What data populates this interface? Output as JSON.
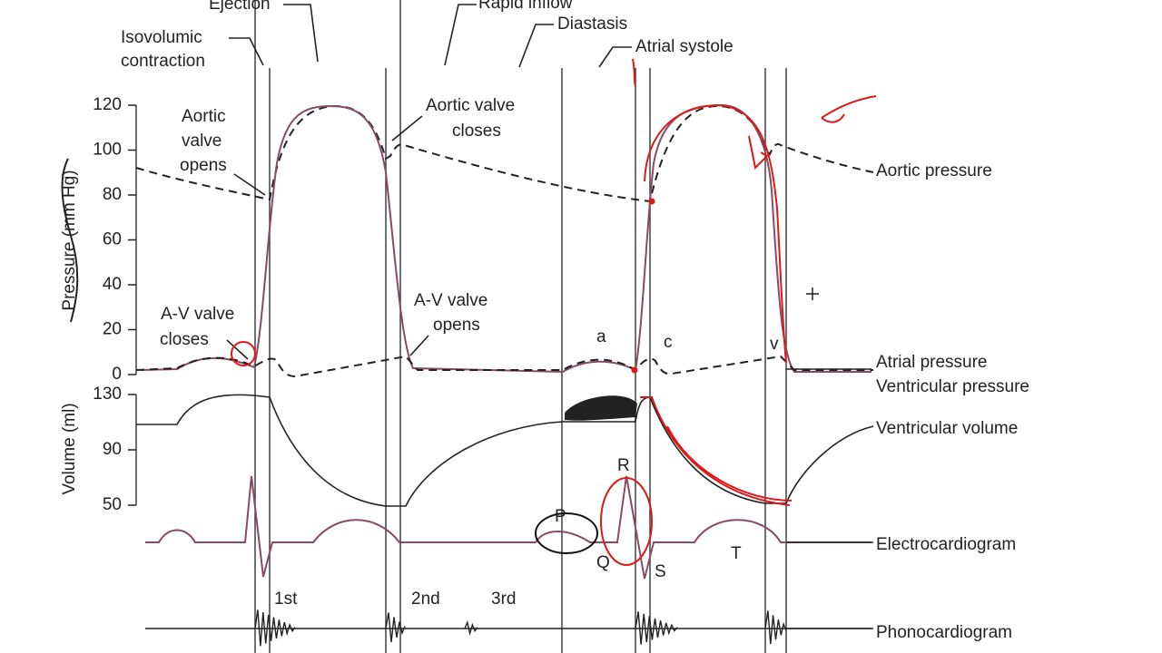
{
  "phase_labels": {
    "ejection": "Ejection",
    "rapid_inflow": "Rapid inflow",
    "diastasis": "Diastasis",
    "atrial_systole": "Atrial systole",
    "isovolumic_contraction": [
      "Isovolumic",
      "contraction"
    ]
  },
  "pressure_axis": {
    "label": "Pressure (mm Hg)",
    "ticks": [
      0,
      20,
      40,
      60,
      80,
      100,
      120
    ]
  },
  "volume_axis": {
    "label": "Volume (ml)",
    "ticks": [
      50,
      90,
      130
    ]
  },
  "events": {
    "aortic_valve_opens": [
      "Aortic",
      "valve",
      "opens"
    ],
    "aortic_valve_closes": [
      "Aortic valve",
      "closes"
    ],
    "av_valve_closes": [
      "A-V valve",
      "closes"
    ],
    "av_valve_opens": [
      "A-V valve",
      "opens"
    ]
  },
  "waves": {
    "atrial": [
      "a",
      "c",
      "v"
    ],
    "ecg": [
      "P",
      "Q",
      "R",
      "S",
      "T"
    ],
    "heart_sounds": [
      "1st",
      "2nd",
      "3rd"
    ]
  },
  "traces": [
    "Aortic pressure",
    "Atrial pressure",
    "Ventricular pressure",
    "Ventricular volume",
    "Electrocardiogram",
    "Phonocardiogram"
  ]
}
